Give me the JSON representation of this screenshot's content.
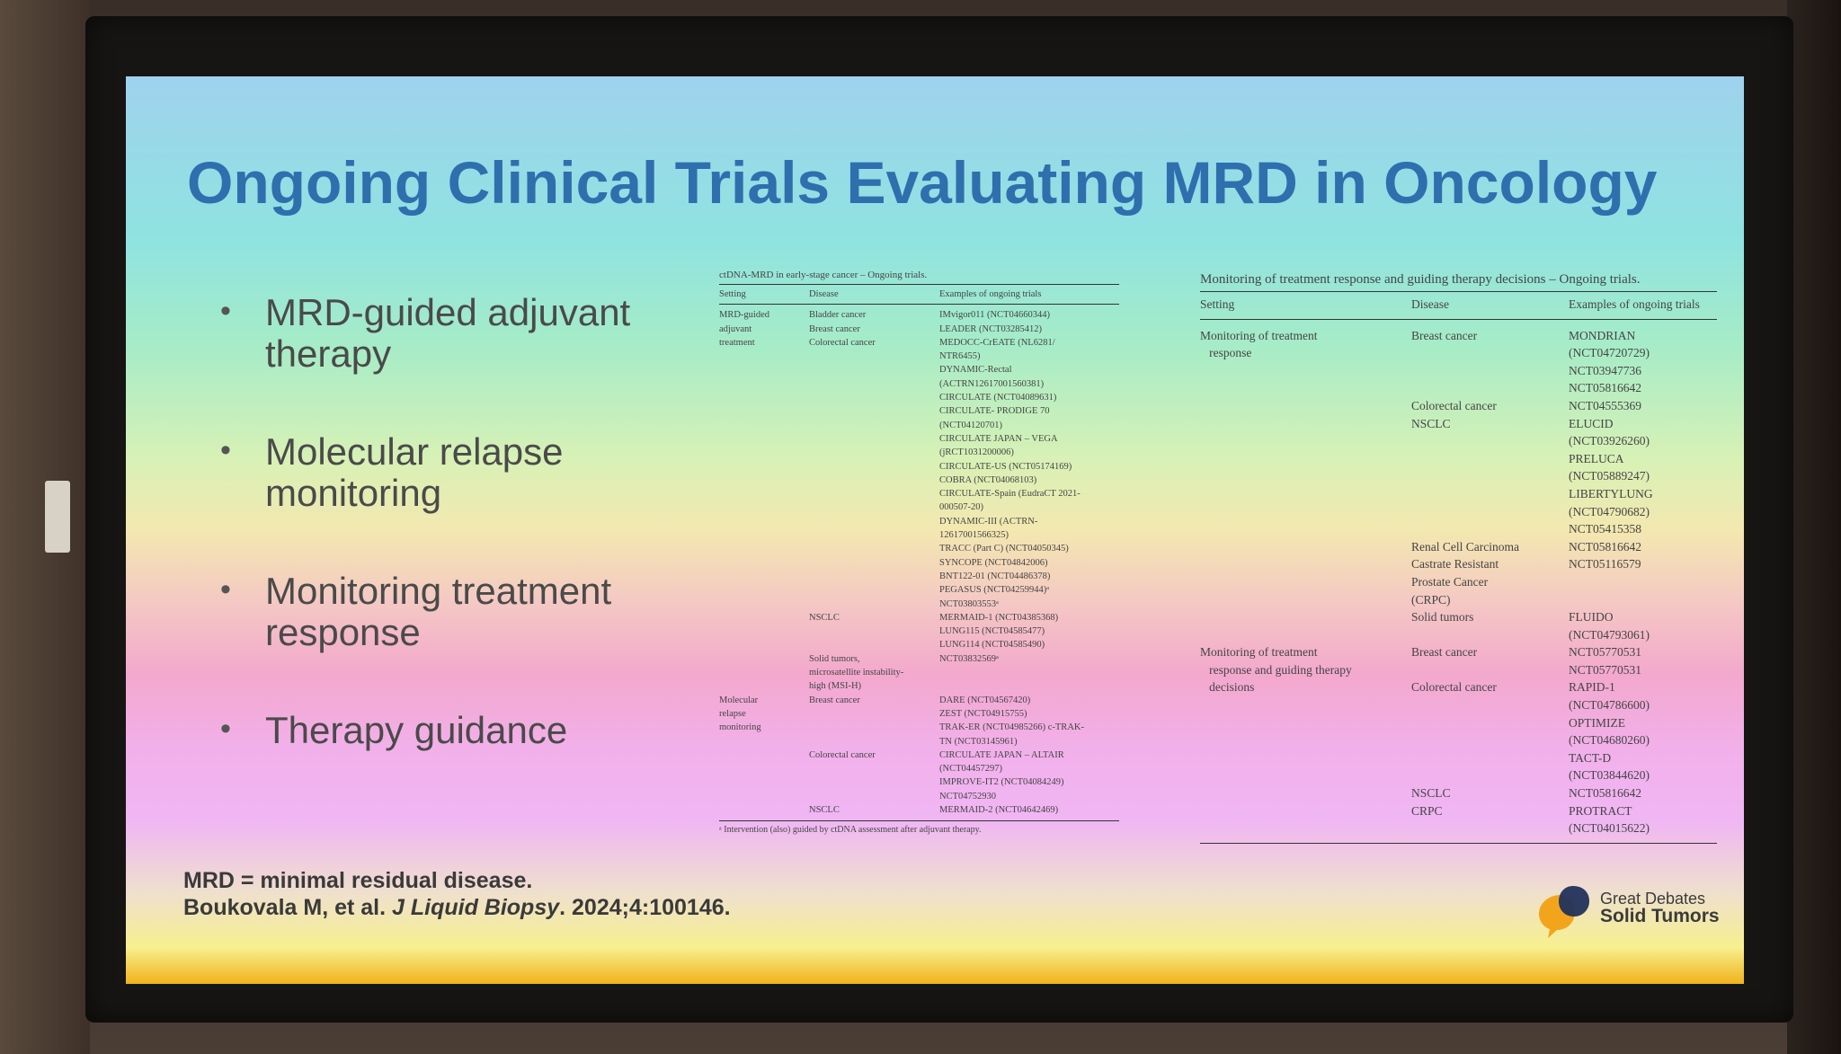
{
  "slide": {
    "title": "Ongoing Clinical Trials Evaluating MRD in Oncology",
    "bullets": [
      "MRD-guided adjuvant therapy",
      "Molecular relapse monitoring",
      "Monitoring treatment response",
      "Therapy guidance"
    ],
    "footnote_definition": "MRD = minimal residual disease.",
    "citation_authors": "Boukovala M, et al. ",
    "citation_journal": "J Liquid Biopsy",
    "citation_rest": ". 2024;4:100146."
  },
  "table1": {
    "caption": "ctDNA-MRD in early-stage cancer – Ongoing trials.",
    "headers": [
      "Setting",
      "Disease",
      "Examples of ongoing trials"
    ],
    "rows": [
      [
        "MRD-guided",
        "Bladder cancer",
        "IMvigor011 (NCT04660344)"
      ],
      [
        "adjuvant",
        "Breast cancer",
        "LEADER (NCT03285412)"
      ],
      [
        "treatment",
        "Colorectal cancer",
        "MEDOCC-CrEATE (NL6281/"
      ],
      [
        "",
        "",
        "NTR6455)"
      ],
      [
        "",
        "",
        "DYNAMIC-Rectal"
      ],
      [
        "",
        "",
        "(ACTRN12617001560381)"
      ],
      [
        "",
        "",
        "CIRCULATE (NCT04089631)"
      ],
      [
        "",
        "",
        "CIRCULATE- PRODIGE 70"
      ],
      [
        "",
        "",
        "(NCT04120701)"
      ],
      [
        "",
        "",
        "CIRCULATE JAPAN – VEGA"
      ],
      [
        "",
        "",
        "(jRCT1031200006)"
      ],
      [
        "",
        "",
        "CIRCULATE-US (NCT05174169)"
      ],
      [
        "",
        "",
        "COBRA (NCT04068103)"
      ],
      [
        "",
        "",
        "CIRCULATE-Spain (EudraCT 2021-"
      ],
      [
        "",
        "",
        "000507-20)"
      ],
      [
        "",
        "",
        "DYNAMIC-III (ACTRN-"
      ],
      [
        "",
        "",
        "12617001566325)"
      ],
      [
        "",
        "",
        "TRACC (Part C) (NCT04050345)"
      ],
      [
        "",
        "",
        "SYNCOPE (NCT04842006)"
      ],
      [
        "",
        "",
        "BNT122-01 (NCT04486378)"
      ],
      [
        "",
        "",
        "PEGASUS (NCT04259944)ᵃ"
      ],
      [
        "",
        "",
        "NCT03803553ᵃ"
      ],
      [
        "",
        "NSCLC",
        "MERMAID-1 (NCT04385368)"
      ],
      [
        "",
        "",
        "LUNG115 (NCT04585477)"
      ],
      [
        "",
        "",
        "LUNG114 (NCT04585490)"
      ],
      [
        "",
        "Solid tumors,",
        "NCT03832569ᵃ"
      ],
      [
        "",
        "microsatellite instability-",
        ""
      ],
      [
        "",
        "high (MSI-H)",
        ""
      ],
      [
        "Molecular",
        "Breast cancer",
        "DARE (NCT04567420)"
      ],
      [
        "relapse",
        "",
        "ZEST (NCT04915755)"
      ],
      [
        "monitoring",
        "",
        "TRAK-ER (NCT04985266) c-TRAK-"
      ],
      [
        "",
        "",
        "TN (NCT03145961)"
      ],
      [
        "",
        "Colorectal cancer",
        "CIRCULATE JAPAN – ALTAIR"
      ],
      [
        "",
        "",
        "(NCT04457297)"
      ],
      [
        "",
        "",
        "IMPROVE-IT2 (NCT04084249)"
      ],
      [
        "",
        "",
        "NCT04752930"
      ],
      [
        "",
        "NSCLC",
        "MERMAID-2 (NCT04642469)"
      ]
    ],
    "footnote": "ᵃ Intervention (also) guided by ctDNA assessment after adjuvant therapy."
  },
  "table2": {
    "caption": "Monitoring of treatment response and guiding therapy decisions – Ongoing trials.",
    "headers": [
      "Setting",
      "Disease",
      "Examples of ongoing trials"
    ],
    "rows": [
      [
        "Monitoring of treatment",
        "Breast cancer",
        "MONDRIAN"
      ],
      [
        "   response",
        "",
        "(NCT04720729)"
      ],
      [
        "",
        "",
        "NCT03947736"
      ],
      [
        "",
        "",
        "NCT05816642"
      ],
      [
        "",
        "Colorectal cancer",
        "NCT04555369"
      ],
      [
        "",
        "NSCLC",
        "ELUCID"
      ],
      [
        "",
        "",
        "(NCT03926260)"
      ],
      [
        "",
        "",
        "PRELUCA"
      ],
      [
        "",
        "",
        "(NCT05889247)"
      ],
      [
        "",
        "",
        "LIBERTYLUNG"
      ],
      [
        "",
        "",
        "(NCT04790682)"
      ],
      [
        "",
        "",
        "NCT05415358"
      ],
      [
        "",
        "Renal Cell Carcinoma",
        "NCT05816642"
      ],
      [
        "",
        "Castrate Resistant",
        "NCT05116579"
      ],
      [
        "",
        "Prostate Cancer",
        ""
      ],
      [
        "",
        "(CRPC)",
        ""
      ],
      [
        "",
        "Solid tumors",
        "FLUIDO"
      ],
      [
        "",
        "",
        "(NCT04793061)"
      ],
      [
        "Monitoring of treatment",
        "Breast cancer",
        "NCT05770531"
      ],
      [
        "   response and guiding therapy",
        "",
        "NCT05770531"
      ],
      [
        "   decisions",
        "Colorectal cancer",
        "RAPID-1"
      ],
      [
        "",
        "",
        "(NCT04786600)"
      ],
      [
        "",
        "",
        "OPTIMIZE"
      ],
      [
        "",
        "",
        "(NCT04680260)"
      ],
      [
        "",
        "",
        "TACT-D"
      ],
      [
        "",
        "",
        "(NCT03844620)"
      ],
      [
        "",
        "NSCLC",
        "NCT05816642"
      ],
      [
        "",
        "CRPC",
        "PROTRACT"
      ],
      [
        "",
        "",
        "(NCT04015622)"
      ]
    ]
  },
  "logo": {
    "line1": "Great Debates",
    "line2": "Solid Tumors"
  },
  "colors": {
    "title": "#2f6fae",
    "logo_orange": "#f2a51c",
    "logo_navy": "#22315c",
    "bottom_bar": "#f1b21a"
  }
}
